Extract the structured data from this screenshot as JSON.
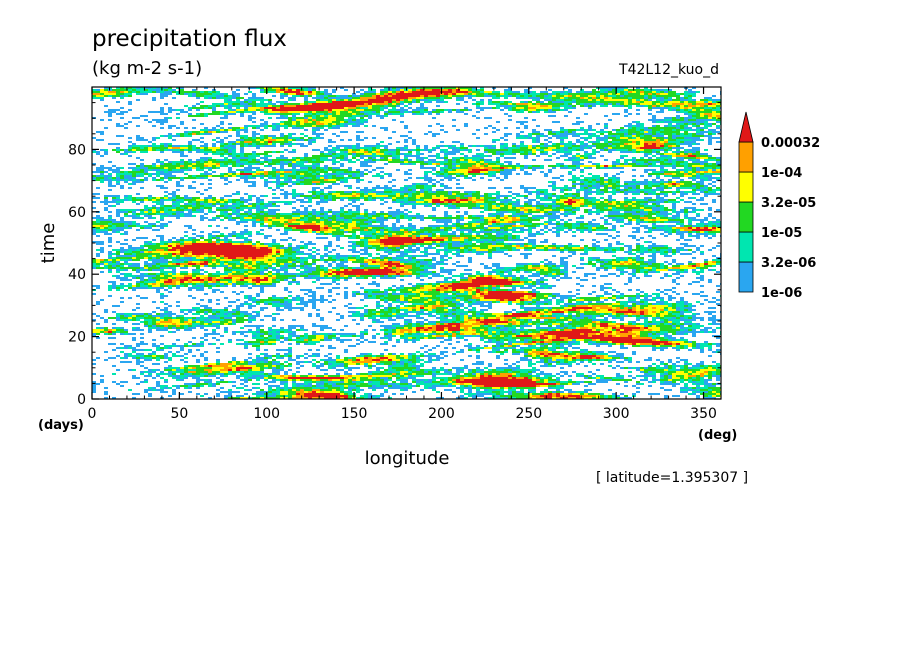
{
  "chart_data": {
    "type": "heatmap",
    "title": "precipitation flux",
    "units": "(kg m-2 s-1)",
    "run_label": "T42L12_kuo_d",
    "xlabel": "longitude",
    "ylabel": "time",
    "x_unit": "(deg)",
    "y_unit": "(days)",
    "annotation": "[ latitude=1.395307 ]",
    "xlim": [
      0,
      360
    ],
    "ylim": [
      0,
      100
    ],
    "x_ticks": [
      "0",
      "50",
      "100",
      "150",
      "200",
      "250",
      "300",
      "350"
    ],
    "y_ticks": [
      "0",
      "20",
      "40",
      "60",
      "80"
    ],
    "colorbar": {
      "levels": [
        "1e-06",
        "3.2e-06",
        "1e-05",
        "3.2e-05",
        "1e-04",
        "0.00032"
      ],
      "colors": [
        "#2aa6f0",
        "#00e6b0",
        "#22d822",
        "#ffff00",
        "#ffa000",
        "#e01818"
      ],
      "overflow_triangle": true
    }
  }
}
